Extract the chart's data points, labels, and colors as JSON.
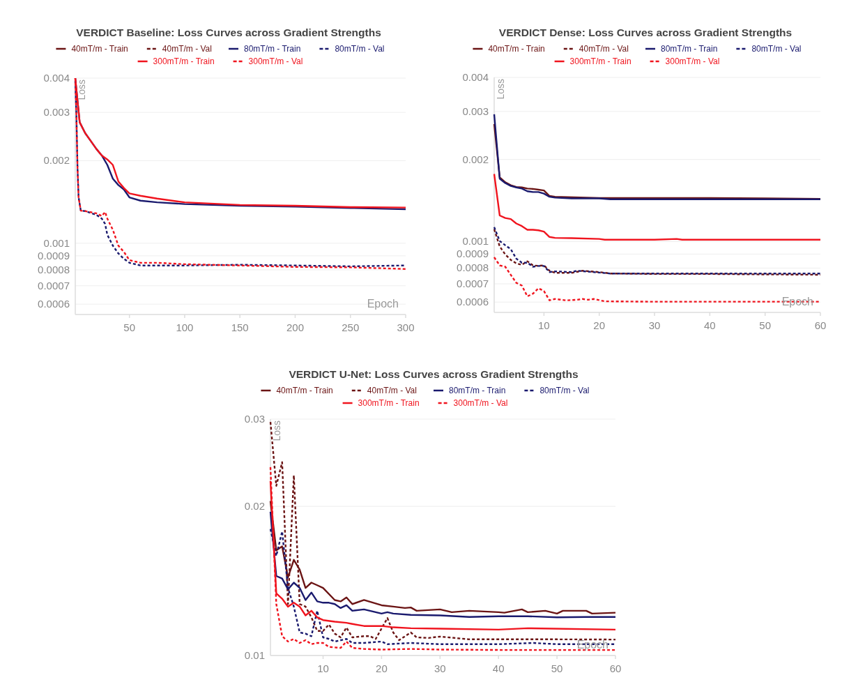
{
  "chart_data": [
    {
      "type": "line",
      "title": "VERDICT Baseline: Loss Curves across Gradient Strengths",
      "xlabel": "Epoch",
      "ylabel": "Loss",
      "log": "y",
      "grid": "y",
      "legend": "top",
      "xlim": [
        1,
        300
      ],
      "xticks": [
        50,
        100,
        150,
        200,
        250,
        300
      ],
      "ylim": [
        0.00055,
        0.004
      ],
      "yticks": [
        0.0006,
        0.0007,
        0.0008,
        0.0009,
        0.001,
        0.002,
        0.003,
        0.004
      ],
      "series": [
        {
          "name": "40mT/m - Train",
          "color": "#6b1414",
          "line_style": "solid"
        },
        {
          "name": "40mT/m - Val",
          "color": "#6b1414",
          "line_style": "dashed"
        },
        {
          "name": "80mT/m - Train",
          "color": "#1a1a6e",
          "line_style": "solid",
          "x": [
            1,
            5,
            10,
            15,
            20,
            25,
            30,
            35,
            40,
            45,
            50,
            60,
            75,
            100,
            150,
            200,
            250,
            300
          ],
          "values": [
            0.004,
            0.00276,
            0.00252,
            0.00236,
            0.00221,
            0.00209,
            0.00193,
            0.00172,
            0.00163,
            0.00157,
            0.00147,
            0.00143,
            0.00141,
            0.00139,
            0.00137,
            0.00136,
            0.001345,
            0.00133
          ]
        },
        {
          "name": "80mT/m - Val",
          "color": "#1a1a6e",
          "line_style": "dashed",
          "x": [
            1,
            2,
            3,
            4,
            6,
            10,
            20,
            25,
            28,
            30,
            35,
            40,
            45,
            50,
            60,
            100,
            150,
            200,
            250,
            300
          ],
          "values": [
            0.0039,
            0.00296,
            0.00189,
            0.00147,
            0.001315,
            0.00131,
            0.00127,
            0.00123,
            0.001176,
            0.001074,
            0.00098,
            0.000918,
            0.000878,
            0.000849,
            0.00083,
            0.00083,
            0.000835,
            0.00083,
            0.000824,
            0.00083
          ]
        },
        {
          "name": "300mT/m - Train",
          "color": "#f0141e",
          "line_style": "solid",
          "x": [
            1,
            5,
            10,
            15,
            20,
            25,
            30,
            35,
            40,
            45,
            50,
            60,
            75,
            100,
            150,
            200,
            250,
            300
          ],
          "values": [
            0.004,
            0.00276,
            0.00252,
            0.00236,
            0.00221,
            0.00209,
            0.00202,
            0.00193,
            0.00168,
            0.00159,
            0.00152,
            0.00149,
            0.001455,
            0.00141,
            0.00138,
            0.00137,
            0.001355,
            0.00135
          ]
        },
        {
          "name": "300mT/m - Val",
          "color": "#f0141e",
          "line_style": "dashed",
          "x": [
            1,
            2,
            3,
            4,
            6,
            10,
            20,
            25,
            28,
            30,
            35,
            40,
            45,
            50,
            60,
            75,
            100,
            150,
            200,
            250,
            300
          ],
          "values": [
            0.004,
            0.00296,
            0.00189,
            0.00147,
            0.001315,
            0.00131,
            0.001286,
            0.001257,
            0.0013,
            0.00123,
            0.00112,
            0.00098,
            0.00093,
            0.000868,
            0.000849,
            0.000849,
            0.000839,
            0.00083,
            0.00082,
            0.000817,
            0.000806
          ]
        }
      ]
    },
    {
      "type": "line",
      "title": "VERDICT Dense: Loss Curves across Gradient Strengths",
      "xlabel": "Epoch",
      "ylabel": "Loss",
      "log": "y",
      "grid": "y",
      "legend": "top",
      "xlim": [
        1,
        60
      ],
      "xticks": [
        10,
        20,
        30,
        40,
        50,
        60
      ],
      "ylim": [
        0.00055,
        0.004
      ],
      "yticks": [
        0.0006,
        0.0007,
        0.0008,
        0.0009,
        0.001,
        0.002,
        0.003,
        0.004
      ],
      "series": [
        {
          "name": "40mT/m - Train",
          "color": "#6b1414",
          "line_style": "solid",
          "x": [
            1,
            2,
            3,
            4,
            5,
            6,
            7,
            8,
            9,
            10,
            11,
            12,
            20,
            30,
            40,
            50,
            60
          ],
          "values": [
            0.0027,
            0.00172,
            0.00165,
            0.00161,
            0.001585,
            0.00158,
            0.001565,
            0.00156,
            0.00155,
            0.00154,
            0.00147,
            0.00146,
            0.001445,
            0.001445,
            0.001445,
            0.00144,
            0.001435
          ]
        },
        {
          "name": "40mT/m - Val",
          "color": "#6b1414",
          "line_style": "dashed",
          "x": [
            1,
            2,
            3,
            4,
            5,
            6,
            7,
            8,
            9,
            10,
            11,
            12,
            15,
            17,
            20,
            22,
            30,
            40,
            50,
            60
          ],
          "values": [
            0.00111,
            0.00096,
            0.000897,
            0.000857,
            0.000832,
            0.000822,
            0.000847,
            0.000818,
            0.000815,
            0.000818,
            0.000782,
            0.000768,
            0.000768,
            0.000782,
            0.000773,
            0.000764,
            0.000761,
            0.000761,
            0.000758,
            0.000756
          ]
        },
        {
          "name": "80mT/m - Train",
          "color": "#1a1a6e",
          "line_style": "solid",
          "x": [
            1,
            2,
            3,
            4,
            5,
            6,
            7,
            8,
            9,
            10,
            11,
            12,
            15,
            20,
            22,
            30,
            40,
            50,
            60
          ],
          "values": [
            0.00293,
            0.0017,
            0.00164,
            0.0016,
            0.00158,
            0.001565,
            0.00153,
            0.00152,
            0.00152,
            0.0015,
            0.00146,
            0.00145,
            0.00144,
            0.00144,
            0.00143,
            0.00143,
            0.00143,
            0.00143,
            0.00143
          ]
        },
        {
          "name": "80mT/m - Val",
          "color": "#1a1a6e",
          "line_style": "dashed",
          "x": [
            1,
            2,
            3,
            4,
            5,
            6,
            7,
            8,
            9,
            10,
            11,
            12,
            15,
            16,
            18,
            20,
            22,
            30,
            40,
            50,
            60
          ],
          "values": [
            0.00113,
            0.001005,
            0.00097,
            0.000938,
            0.000866,
            0.000837,
            0.000837,
            0.000809,
            0.000814,
            0.000814,
            0.000773,
            0.000778,
            0.000773,
            0.000782,
            0.000776,
            0.00077,
            0.000764,
            0.000764,
            0.000764,
            0.000764,
            0.000764
          ]
        },
        {
          "name": "300mT/m - Train",
          "color": "#f0141e",
          "line_style": "solid",
          "x": [
            1,
            2,
            3,
            4,
            5,
            6,
            7,
            8,
            9,
            10,
            11,
            12,
            15,
            20,
            21,
            30,
            34,
            35,
            40,
            50,
            60
          ],
          "values": [
            0.00177,
            0.001247,
            0.00122,
            0.00121,
            0.001165,
            0.00114,
            0.001105,
            0.001105,
            0.0011,
            0.001088,
            0.00104,
            0.001032,
            0.00103,
            0.001023,
            0.001016,
            0.001016,
            0.001023,
            0.001016,
            0.001016,
            0.001016,
            0.001016
          ]
        },
        {
          "name": "300mT/m - Val",
          "color": "#f0141e",
          "line_style": "dashed",
          "x": [
            1,
            2,
            3,
            4,
            5,
            6,
            7,
            8,
            9,
            10,
            11,
            12,
            14,
            16,
            17,
            18,
            19,
            21,
            30,
            40,
            50,
            60
          ],
          "values": [
            0.000876,
            0.000818,
            0.000809,
            0.000755,
            0.000706,
            0.00069,
            0.00063,
            0.000644,
            0.000674,
            0.000659,
            0.000609,
            0.000616,
            0.000609,
            0.000612,
            0.000616,
            0.000612,
            0.000616,
            0.000604,
            0.000602,
            0.000602,
            0.000602,
            0.000602
          ]
        }
      ]
    },
    {
      "type": "line",
      "title": "VERDICT U-Net: Loss Curves across Gradient Strengths",
      "xlabel": "Epoch",
      "ylabel": "Loss",
      "log": "y",
      "grid": "y",
      "legend": "top",
      "xlim": [
        1,
        60
      ],
      "xticks": [
        10,
        20,
        30,
        40,
        50,
        60
      ],
      "ylim": [
        0.01,
        0.03
      ],
      "yticks": [
        0.01,
        0.02,
        0.03
      ],
      "series": [
        {
          "name": "40mT/m - Train",
          "color": "#6b1414",
          "line_style": "solid",
          "x": [
            1,
            2,
            3,
            4,
            5,
            6,
            7,
            8,
            9,
            10,
            12,
            13,
            14,
            15,
            17,
            20,
            22,
            24,
            25,
            26,
            30,
            32,
            35,
            40,
            41,
            44,
            45,
            48,
            50,
            51,
            55,
            56,
            60
          ],
          "values": [
            0.0205,
            0.0163,
            0.0166,
            0.01438,
            0.0156,
            0.0149,
            0.01369,
            0.01403,
            0.01386,
            0.01369,
            0.01294,
            0.01286,
            0.0131,
            0.0127,
            0.01294,
            0.01263,
            0.01255,
            0.01247,
            0.0125,
            0.01231,
            0.01239,
            0.01223,
            0.01231,
            0.01223,
            0.0122,
            0.01239,
            0.01223,
            0.01231,
            0.01215,
            0.01231,
            0.01231,
            0.01215,
            0.0122
          ]
        },
        {
          "name": "40mT/m - Val",
          "color": "#6b1414",
          "line_style": "dashed",
          "x": [
            1,
            2,
            3,
            4,
            5,
            6,
            7,
            8,
            9,
            10,
            11,
            12,
            13,
            14,
            15,
            17,
            18,
            19,
            21,
            22,
            23,
            25,
            26,
            28,
            30,
            35,
            40,
            45,
            50,
            60
          ],
          "values": [
            0.0296,
            0.022,
            0.02456,
            0.0127,
            0.0231,
            0.0127,
            0.01255,
            0.01194,
            0.01121,
            0.01121,
            0.01155,
            0.01107,
            0.01088,
            0.01139,
            0.01088,
            0.01094,
            0.01094,
            0.0108,
            0.0119,
            0.01113,
            0.01074,
            0.01113,
            0.01088,
            0.01085,
            0.01092,
            0.01078,
            0.01078,
            0.01078,
            0.01078,
            0.01077
          ]
        },
        {
          "name": "80mT/m - Train",
          "color": "#1a1a6e",
          "line_style": "solid",
          "x": [
            1,
            2,
            3,
            4,
            5,
            6,
            7,
            8,
            9,
            10,
            11,
            12,
            13,
            14,
            15,
            17,
            20,
            21,
            22,
            25,
            30,
            35,
            40,
            45,
            50,
            55,
            60
          ],
          "values": [
            0.0195,
            0.01447,
            0.0143,
            0.0136,
            0.01403,
            0.01369,
            0.01294,
            0.0134,
            0.01286,
            0.01278,
            0.01278,
            0.0127,
            0.01247,
            0.01263,
            0.01231,
            0.01239,
            0.01215,
            0.01223,
            0.01215,
            0.01208,
            0.01205,
            0.01196,
            0.012,
            0.012,
            0.01194,
            0.01196,
            0.01196
          ]
        },
        {
          "name": "80mT/m - Val",
          "color": "#1a1a6e",
          "line_style": "dashed",
          "x": [
            1,
            2,
            3,
            4,
            5,
            6,
            7,
            8,
            9,
            10,
            11,
            12,
            14,
            15,
            17,
            20,
            21,
            25,
            30,
            35,
            40,
            46,
            50,
            60
          ],
          "values": [
            0.018,
            0.01589,
            0.0178,
            0.01369,
            0.01255,
            0.01113,
            0.01107,
            0.01094,
            0.01231,
            0.01088,
            0.0108,
            0.01067,
            0.0108,
            0.0106,
            0.0106,
            0.01067,
            0.01054,
            0.0106,
            0.01054,
            0.01054,
            0.01054,
            0.0106,
            0.01054,
            0.01054
          ]
        },
        {
          "name": "300mT/m - Train",
          "color": "#f0141e",
          "line_style": "solid",
          "x": [
            1,
            2,
            3,
            4,
            5,
            6,
            7,
            8,
            9,
            10,
            12,
            14,
            15,
            17,
            20,
            22,
            25,
            30,
            40,
            45,
            60
          ],
          "values": [
            0.0225,
            0.01335,
            0.01302,
            0.01255,
            0.01278,
            0.01255,
            0.01205,
            0.01231,
            0.01194,
            0.01179,
            0.0117,
            0.01164,
            0.01158,
            0.01147,
            0.01147,
            0.0114,
            0.01135,
            0.01133,
            0.01128,
            0.01135,
            0.01128
          ]
        },
        {
          "name": "300mT/m - Val",
          "color": "#f0141e",
          "line_style": "dashed",
          "x": [
            1,
            2,
            3,
            4,
            5,
            6,
            7,
            8,
            9,
            10,
            11,
            13,
            14,
            15,
            17,
            20,
            25,
            30,
            40,
            60
          ],
          "values": [
            0.024,
            0.0127,
            0.01094,
            0.01067,
            0.0108,
            0.0106,
            0.01074,
            0.01054,
            0.0106,
            0.0106,
            0.01041,
            0.01036,
            0.01067,
            0.01036,
            0.01031,
            0.01028,
            0.01031,
            0.01028,
            0.01026,
            0.01026
          ]
        }
      ]
    }
  ]
}
